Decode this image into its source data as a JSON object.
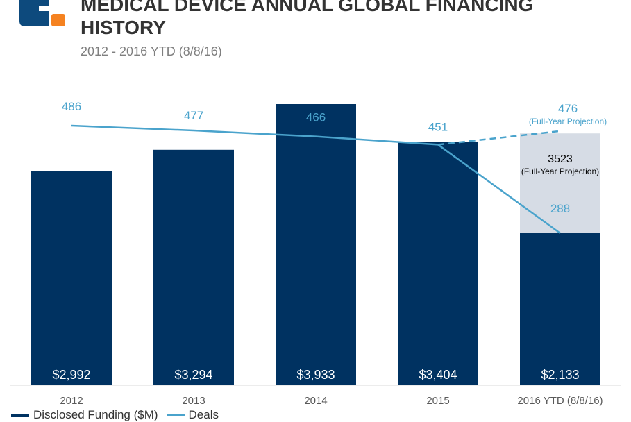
{
  "header": {
    "title": "MEDICAL DEVICE ANNUAL GLOBAL FINANCING HISTORY",
    "subtitle": "2012 - 2016 YTD  (8/8/16)"
  },
  "colors": {
    "bar": "#003261",
    "projection_bar": "#d6dce5",
    "line": "#4aa3cc",
    "logo_blue": "#0d4a7d",
    "logo_orange": "#f58220"
  },
  "chart_data": {
    "type": "bar",
    "categories": [
      "2012",
      "2013",
      "2014",
      "2015",
      "2016 YTD (8/8/16)"
    ],
    "series": [
      {
        "name": "Disclosed Funding ($M)",
        "values": [
          2992,
          3294,
          3933,
          3404,
          2133
        ],
        "labels": [
          "$2,992",
          "$3,294",
          "$3,933",
          "$3,404",
          "$2,133"
        ]
      },
      {
        "name": "Deals",
        "type": "line",
        "values": [
          486,
          477,
          466,
          451,
          288
        ]
      }
    ],
    "projection": {
      "funding_value": 3523,
      "funding_label": "3523",
      "funding_note": "(Full-Year Projection)",
      "deals_value": 476,
      "deals_label": "476",
      "deals_note": "(Full-Year Projection)"
    },
    "legend": {
      "bar_label": "Disclosed Funding ($M)",
      "line_label": "Deals",
      "position": "bottom"
    },
    "grid": false,
    "ylim_funding": [
      0,
      4000
    ],
    "ylim_deals": [
      0,
      500
    ]
  }
}
